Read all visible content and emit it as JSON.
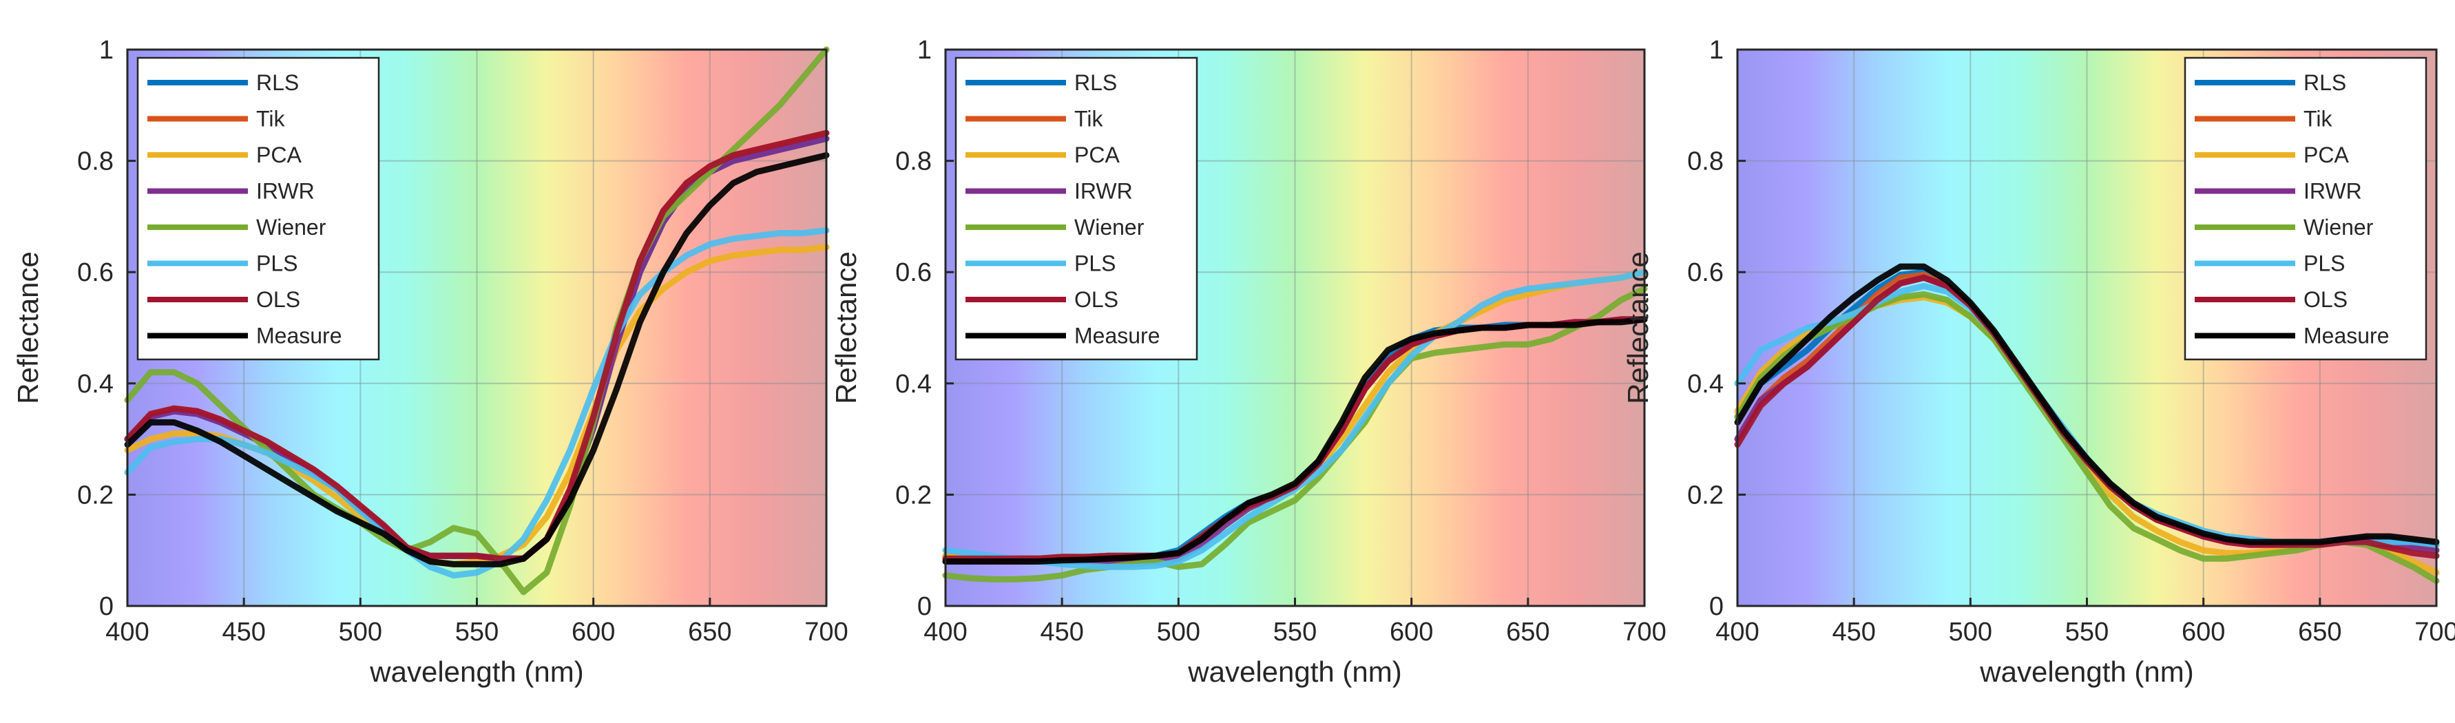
{
  "figure": {
    "spectrum_gradient": [
      "#9a96f2",
      "#a9a3ff",
      "#9fd4ff",
      "#9ff6ff",
      "#9ffbe9",
      "#b5f6b5",
      "#f5f5a0",
      "#ffd39f",
      "#ffaaa0",
      "#f2a0a0",
      "#dca4a4"
    ]
  },
  "chart_data": [
    {
      "type": "line",
      "xlabel": "wavelength (nm)",
      "ylabel": "Reflectance",
      "xlim": [
        400,
        700
      ],
      "ylim": [
        0,
        1
      ],
      "x_ticks": [
        "400",
        "450",
        "500",
        "550",
        "600",
        "650",
        "700"
      ],
      "y_ticks": [
        "0",
        "0.2",
        "0.4",
        "0.6",
        "0.8",
        "1"
      ],
      "legend_position": "top-left",
      "x": [
        400,
        410,
        420,
        430,
        440,
        450,
        460,
        470,
        480,
        490,
        500,
        510,
        520,
        530,
        540,
        550,
        560,
        570,
        580,
        590,
        600,
        610,
        620,
        630,
        640,
        650,
        660,
        670,
        680,
        690,
        700
      ],
      "series": [
        {
          "name": "RLS",
          "color": "#0072bd",
          "values": [
            0.3,
            0.34,
            0.35,
            0.345,
            0.33,
            0.31,
            0.29,
            0.265,
            0.24,
            0.21,
            0.175,
            0.14,
            0.1,
            0.09,
            0.09,
            0.09,
            0.085,
            0.085,
            0.12,
            0.2,
            0.32,
            0.47,
            0.6,
            0.69,
            0.75,
            0.78,
            0.8,
            0.81,
            0.82,
            0.83,
            0.84
          ]
        },
        {
          "name": "Tik",
          "color": "#d95319",
          "values": [
            0.3,
            0.345,
            0.355,
            0.35,
            0.335,
            0.315,
            0.295,
            0.27,
            0.245,
            0.215,
            0.18,
            0.145,
            0.105,
            0.09,
            0.09,
            0.09,
            0.085,
            0.085,
            0.12,
            0.21,
            0.34,
            0.49,
            0.62,
            0.71,
            0.76,
            0.79,
            0.81,
            0.82,
            0.83,
            0.84,
            0.85
          ]
        },
        {
          "name": "PCA",
          "color": "#edb120",
          "values": [
            0.28,
            0.3,
            0.31,
            0.31,
            0.305,
            0.29,
            0.275,
            0.25,
            0.225,
            0.195,
            0.16,
            0.13,
            0.1,
            0.08,
            0.075,
            0.08,
            0.09,
            0.11,
            0.16,
            0.24,
            0.35,
            0.46,
            0.53,
            0.57,
            0.6,
            0.62,
            0.63,
            0.635,
            0.64,
            0.64,
            0.645
          ]
        },
        {
          "name": "IRWR",
          "color": "#7e2f8e",
          "values": [
            0.3,
            0.34,
            0.35,
            0.345,
            0.33,
            0.31,
            0.29,
            0.265,
            0.24,
            0.21,
            0.175,
            0.14,
            0.1,
            0.09,
            0.09,
            0.09,
            0.085,
            0.085,
            0.12,
            0.2,
            0.32,
            0.47,
            0.6,
            0.69,
            0.75,
            0.78,
            0.8,
            0.81,
            0.82,
            0.83,
            0.84
          ]
        },
        {
          "name": "Wiener",
          "color": "#77ac30",
          "values": [
            0.37,
            0.42,
            0.42,
            0.4,
            0.36,
            0.32,
            0.28,
            0.24,
            0.2,
            0.175,
            0.15,
            0.12,
            0.1,
            0.115,
            0.14,
            0.13,
            0.08,
            0.025,
            0.06,
            0.18,
            0.33,
            0.5,
            0.62,
            0.7,
            0.74,
            0.78,
            0.82,
            0.86,
            0.9,
            0.95,
            1.0
          ]
        },
        {
          "name": "PLS",
          "color": "#4dbeee",
          "values": [
            0.24,
            0.285,
            0.295,
            0.3,
            0.3,
            0.29,
            0.275,
            0.255,
            0.235,
            0.21,
            0.17,
            0.135,
            0.1,
            0.07,
            0.055,
            0.06,
            0.08,
            0.12,
            0.19,
            0.28,
            0.39,
            0.49,
            0.56,
            0.6,
            0.63,
            0.65,
            0.66,
            0.665,
            0.67,
            0.67,
            0.675
          ]
        },
        {
          "name": "OLS",
          "color": "#a2142f",
          "values": [
            0.3,
            0.345,
            0.355,
            0.35,
            0.335,
            0.315,
            0.295,
            0.27,
            0.245,
            0.215,
            0.18,
            0.145,
            0.105,
            0.09,
            0.09,
            0.09,
            0.085,
            0.085,
            0.12,
            0.21,
            0.34,
            0.49,
            0.62,
            0.71,
            0.76,
            0.79,
            0.81,
            0.82,
            0.83,
            0.84,
            0.85
          ]
        },
        {
          "name": "Measure",
          "color": "#000000",
          "values": [
            0.29,
            0.33,
            0.33,
            0.315,
            0.295,
            0.27,
            0.245,
            0.22,
            0.195,
            0.17,
            0.15,
            0.13,
            0.1,
            0.08,
            0.075,
            0.075,
            0.075,
            0.085,
            0.12,
            0.19,
            0.28,
            0.39,
            0.51,
            0.6,
            0.67,
            0.72,
            0.76,
            0.78,
            0.79,
            0.8,
            0.81
          ]
        }
      ]
    },
    {
      "type": "line",
      "xlabel": "wavelength (nm)",
      "ylabel": "Reflectance",
      "xlim": [
        400,
        700
      ],
      "ylim": [
        0,
        1
      ],
      "x_ticks": [
        "400",
        "450",
        "500",
        "550",
        "600",
        "650",
        "700"
      ],
      "y_ticks": [
        "0",
        "0.2",
        "0.4",
        "0.6",
        "0.8",
        "1"
      ],
      "legend_position": "top-left",
      "x": [
        400,
        410,
        420,
        430,
        440,
        450,
        460,
        470,
        480,
        490,
        500,
        510,
        520,
        530,
        540,
        550,
        560,
        570,
        580,
        590,
        600,
        610,
        620,
        630,
        640,
        650,
        660,
        670,
        680,
        690,
        700
      ],
      "series": [
        {
          "name": "RLS",
          "color": "#0072bd",
          "values": [
            0.09,
            0.085,
            0.085,
            0.085,
            0.085,
            0.088,
            0.088,
            0.09,
            0.09,
            0.09,
            0.1,
            0.13,
            0.16,
            0.185,
            0.2,
            0.22,
            0.26,
            0.32,
            0.4,
            0.45,
            0.48,
            0.495,
            0.5,
            0.5,
            0.505,
            0.505,
            0.505,
            0.51,
            0.51,
            0.515,
            0.515
          ]
        },
        {
          "name": "Tik",
          "color": "#d95319",
          "values": [
            0.085,
            0.085,
            0.085,
            0.085,
            0.085,
            0.088,
            0.088,
            0.09,
            0.09,
            0.09,
            0.095,
            0.125,
            0.155,
            0.18,
            0.195,
            0.215,
            0.255,
            0.315,
            0.39,
            0.44,
            0.47,
            0.485,
            0.495,
            0.5,
            0.5,
            0.505,
            0.505,
            0.51,
            0.51,
            0.515,
            0.515
          ]
        },
        {
          "name": "PCA",
          "color": "#edb120",
          "values": [
            0.09,
            0.085,
            0.08,
            0.08,
            0.08,
            0.08,
            0.08,
            0.08,
            0.08,
            0.08,
            0.09,
            0.12,
            0.15,
            0.18,
            0.2,
            0.22,
            0.25,
            0.3,
            0.36,
            0.42,
            0.46,
            0.49,
            0.51,
            0.53,
            0.55,
            0.56,
            0.57,
            0.58,
            0.585,
            0.59,
            0.6
          ]
        },
        {
          "name": "IRWR",
          "color": "#7e2f8e",
          "values": [
            0.08,
            0.08,
            0.08,
            0.08,
            0.08,
            0.08,
            0.08,
            0.08,
            0.08,
            0.08,
            0.085,
            0.11,
            0.145,
            0.175,
            0.195,
            0.215,
            0.255,
            0.315,
            0.39,
            0.44,
            0.47,
            0.485,
            0.495,
            0.5,
            0.5,
            0.505,
            0.505,
            0.51,
            0.51,
            0.515,
            0.515
          ]
        },
        {
          "name": "Wiener",
          "color": "#77ac30",
          "values": [
            0.055,
            0.05,
            0.048,
            0.048,
            0.05,
            0.055,
            0.065,
            0.07,
            0.075,
            0.08,
            0.07,
            0.075,
            0.11,
            0.15,
            0.17,
            0.19,
            0.23,
            0.28,
            0.33,
            0.4,
            0.445,
            0.455,
            0.46,
            0.465,
            0.47,
            0.47,
            0.48,
            0.5,
            0.52,
            0.55,
            0.57
          ]
        },
        {
          "name": "PLS",
          "color": "#4dbeee",
          "values": [
            0.1,
            0.095,
            0.09,
            0.085,
            0.08,
            0.075,
            0.072,
            0.07,
            0.07,
            0.072,
            0.08,
            0.1,
            0.13,
            0.16,
            0.185,
            0.21,
            0.24,
            0.28,
            0.34,
            0.4,
            0.45,
            0.485,
            0.51,
            0.54,
            0.56,
            0.57,
            0.575,
            0.58,
            0.585,
            0.59,
            0.6
          ]
        },
        {
          "name": "OLS",
          "color": "#a2142f",
          "values": [
            0.085,
            0.085,
            0.085,
            0.085,
            0.085,
            0.088,
            0.088,
            0.09,
            0.09,
            0.09,
            0.095,
            0.125,
            0.155,
            0.18,
            0.195,
            0.215,
            0.255,
            0.315,
            0.39,
            0.44,
            0.47,
            0.485,
            0.495,
            0.5,
            0.5,
            0.505,
            0.505,
            0.51,
            0.51,
            0.515,
            0.515
          ]
        },
        {
          "name": "Measure",
          "color": "#000000",
          "values": [
            0.08,
            0.08,
            0.08,
            0.08,
            0.08,
            0.082,
            0.083,
            0.085,
            0.087,
            0.09,
            0.095,
            0.12,
            0.155,
            0.185,
            0.2,
            0.22,
            0.26,
            0.33,
            0.41,
            0.46,
            0.48,
            0.49,
            0.495,
            0.5,
            0.5,
            0.505,
            0.505,
            0.505,
            0.51,
            0.51,
            0.515
          ]
        }
      ]
    },
    {
      "type": "line",
      "xlabel": "wavelength (nm)",
      "ylabel": "Reflectance",
      "xlim": [
        400,
        700
      ],
      "ylim": [
        0,
        1
      ],
      "x_ticks": [
        "400",
        "450",
        "500",
        "550",
        "600",
        "650",
        "700"
      ],
      "y_ticks": [
        "0",
        "0.2",
        "0.4",
        "0.6",
        "0.8",
        "1"
      ],
      "legend_position": "top-right",
      "x": [
        400,
        410,
        420,
        430,
        440,
        450,
        460,
        470,
        480,
        490,
        500,
        510,
        520,
        530,
        540,
        550,
        560,
        570,
        580,
        590,
        600,
        610,
        620,
        630,
        640,
        650,
        660,
        670,
        680,
        690,
        700
      ],
      "series": [
        {
          "name": "RLS",
          "color": "#0072bd",
          "values": [
            0.34,
            0.4,
            0.43,
            0.46,
            0.5,
            0.535,
            0.57,
            0.595,
            0.6,
            0.575,
            0.54,
            0.49,
            0.43,
            0.37,
            0.31,
            0.26,
            0.215,
            0.18,
            0.155,
            0.14,
            0.13,
            0.12,
            0.115,
            0.115,
            0.115,
            0.115,
            0.12,
            0.12,
            0.12,
            0.115,
            0.11
          ]
        },
        {
          "name": "Tik",
          "color": "#d95319",
          "values": [
            0.3,
            0.37,
            0.41,
            0.44,
            0.48,
            0.52,
            0.56,
            0.59,
            0.595,
            0.575,
            0.54,
            0.49,
            0.43,
            0.37,
            0.31,
            0.26,
            0.215,
            0.18,
            0.155,
            0.14,
            0.125,
            0.115,
            0.11,
            0.11,
            0.11,
            0.11,
            0.115,
            0.115,
            0.11,
            0.105,
            0.1
          ]
        },
        {
          "name": "PCA",
          "color": "#edb120",
          "values": [
            0.35,
            0.42,
            0.46,
            0.49,
            0.51,
            0.525,
            0.54,
            0.55,
            0.555,
            0.545,
            0.52,
            0.48,
            0.43,
            0.37,
            0.31,
            0.255,
            0.2,
            0.16,
            0.135,
            0.115,
            0.1,
            0.095,
            0.095,
            0.1,
            0.105,
            0.11,
            0.115,
            0.115,
            0.1,
            0.08,
            0.06
          ]
        },
        {
          "name": "IRWR",
          "color": "#7e2f8e",
          "values": [
            0.3,
            0.37,
            0.4,
            0.43,
            0.47,
            0.51,
            0.55,
            0.58,
            0.59,
            0.575,
            0.54,
            0.49,
            0.43,
            0.37,
            0.31,
            0.26,
            0.215,
            0.18,
            0.155,
            0.14,
            0.125,
            0.115,
            0.11,
            0.11,
            0.11,
            0.11,
            0.115,
            0.115,
            0.11,
            0.105,
            0.1
          ]
        },
        {
          "name": "Wiener",
          "color": "#77ac30",
          "values": [
            0.34,
            0.41,
            0.45,
            0.48,
            0.5,
            0.52,
            0.54,
            0.555,
            0.56,
            0.55,
            0.52,
            0.48,
            0.42,
            0.36,
            0.3,
            0.24,
            0.18,
            0.14,
            0.12,
            0.1,
            0.085,
            0.085,
            0.09,
            0.095,
            0.1,
            0.11,
            0.115,
            0.11,
            0.09,
            0.07,
            0.045
          ]
        },
        {
          "name": "PLS",
          "color": "#4dbeee",
          "values": [
            0.4,
            0.46,
            0.48,
            0.5,
            0.51,
            0.525,
            0.545,
            0.565,
            0.575,
            0.565,
            0.535,
            0.49,
            0.43,
            0.375,
            0.32,
            0.265,
            0.22,
            0.185,
            0.165,
            0.15,
            0.135,
            0.125,
            0.12,
            0.115,
            0.115,
            0.115,
            0.115,
            0.115,
            0.115,
            0.115,
            0.11
          ]
        },
        {
          "name": "OLS",
          "color": "#a2142f",
          "values": [
            0.29,
            0.36,
            0.4,
            0.43,
            0.47,
            0.51,
            0.55,
            0.58,
            0.59,
            0.575,
            0.54,
            0.49,
            0.43,
            0.37,
            0.31,
            0.26,
            0.215,
            0.18,
            0.155,
            0.14,
            0.125,
            0.115,
            0.11,
            0.11,
            0.11,
            0.11,
            0.115,
            0.115,
            0.105,
            0.095,
            0.09
          ]
        },
        {
          "name": "Measure",
          "color": "#000000",
          "values": [
            0.33,
            0.4,
            0.44,
            0.48,
            0.52,
            0.555,
            0.585,
            0.61,
            0.61,
            0.585,
            0.545,
            0.495,
            0.435,
            0.375,
            0.315,
            0.265,
            0.22,
            0.185,
            0.16,
            0.145,
            0.13,
            0.12,
            0.115,
            0.115,
            0.115,
            0.115,
            0.12,
            0.125,
            0.125,
            0.12,
            0.115
          ]
        }
      ]
    }
  ]
}
